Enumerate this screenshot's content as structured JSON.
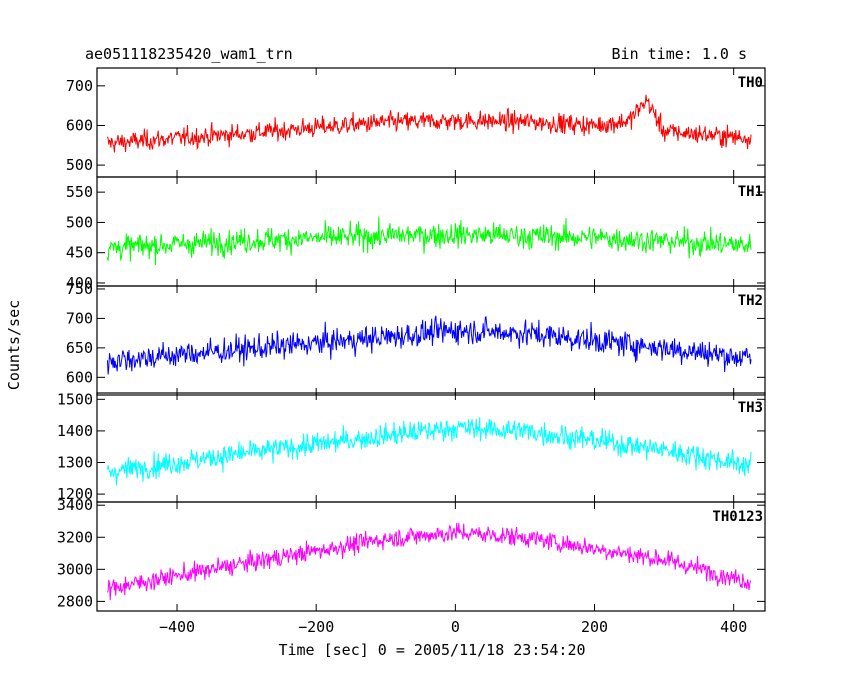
{
  "header": {
    "title": "ae051118235420_wam1_trn",
    "bin_time": "Bin time: 1.0 s"
  },
  "chart_data": {
    "type": "line",
    "shared_x_axis": {
      "label": "Time [sec] 0 = 2005/11/18 23:54:20",
      "range": [
        -515,
        445
      ],
      "ticks": [
        -400,
        -200,
        0,
        200,
        400
      ],
      "data_range": [
        -500,
        425
      ]
    },
    "ylabel": "Counts/sec",
    "panels": [
      {
        "name": "TH0",
        "color": "#ff0000",
        "ylim": [
          470,
          745
        ],
        "yticks": [
          500,
          600,
          700
        ],
        "trend": [
          {
            "x": -500,
            "y": 555
          },
          {
            "x": -400,
            "y": 568
          },
          {
            "x": -300,
            "y": 580
          },
          {
            "x": -200,
            "y": 595
          },
          {
            "x": -100,
            "y": 608
          },
          {
            "x": 0,
            "y": 612
          },
          {
            "x": 100,
            "y": 610
          },
          {
            "x": 200,
            "y": 600
          },
          {
            "x": 250,
            "y": 612
          },
          {
            "x": 275,
            "y": 665
          },
          {
            "x": 290,
            "y": 615
          },
          {
            "x": 300,
            "y": 585
          },
          {
            "x": 425,
            "y": 568
          }
        ],
        "noise": 55
      },
      {
        "name": "TH1",
        "color": "#00ff00",
        "ylim": [
          395,
          575
        ],
        "yticks": [
          400,
          450,
          500,
          550
        ],
        "trend": [
          {
            "x": -500,
            "y": 458
          },
          {
            "x": -300,
            "y": 470
          },
          {
            "x": -100,
            "y": 478
          },
          {
            "x": 0,
            "y": 480
          },
          {
            "x": 200,
            "y": 475
          },
          {
            "x": 425,
            "y": 462
          }
        ],
        "noise": 45
      },
      {
        "name": "TH2",
        "color": "#0000ff",
        "ylim": [
          570,
          755
        ],
        "yticks": [
          600,
          650,
          700,
          750
        ],
        "trend": [
          {
            "x": -500,
            "y": 628
          },
          {
            "x": -300,
            "y": 648
          },
          {
            "x": -100,
            "y": 668
          },
          {
            "x": 0,
            "y": 680
          },
          {
            "x": 100,
            "y": 675
          },
          {
            "x": 300,
            "y": 650
          },
          {
            "x": 425,
            "y": 632
          }
        ],
        "noise": 48
      },
      {
        "name": "TH3",
        "color": "#00ffff",
        "ylim": [
          1175,
          1520
        ],
        "yticks": [
          1200,
          1300,
          1400,
          1500
        ],
        "trend": [
          {
            "x": -500,
            "y": 1270
          },
          {
            "x": -300,
            "y": 1330
          },
          {
            "x": -100,
            "y": 1385
          },
          {
            "x": 0,
            "y": 1410
          },
          {
            "x": 100,
            "y": 1400
          },
          {
            "x": 300,
            "y": 1340
          },
          {
            "x": 425,
            "y": 1290
          }
        ],
        "noise": 80
      },
      {
        "name": "TH0123",
        "color": "#ff00ff",
        "ylim": [
          2740,
          3420
        ],
        "yticks": [
          2800,
          3000,
          3200,
          3400
        ],
        "trend": [
          {
            "x": -500,
            "y": 2880
          },
          {
            "x": -300,
            "y": 3040
          },
          {
            "x": -100,
            "y": 3190
          },
          {
            "x": 0,
            "y": 3230
          },
          {
            "x": 100,
            "y": 3200
          },
          {
            "x": 300,
            "y": 3060
          },
          {
            "x": 425,
            "y": 2920
          }
        ],
        "noise": 130
      }
    ]
  }
}
